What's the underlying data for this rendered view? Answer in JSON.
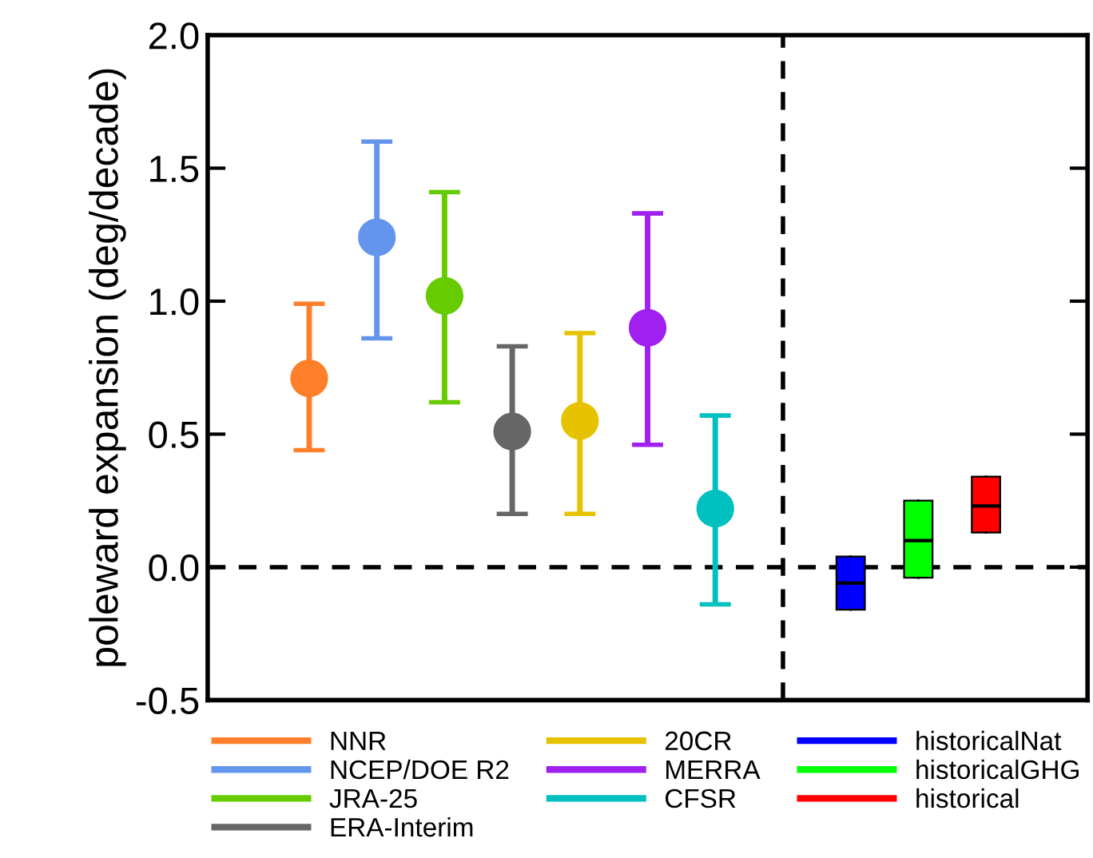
{
  "chart_data": {
    "type": "scatter",
    "ylabel": "poleward expansion (deg/decade)",
    "categories": [
      null,
      null,
      null,
      null,
      null,
      null,
      null,
      null,
      null,
      null,
      null,
      null,
      null
    ],
    "ylim": [
      -0.5,
      2.0
    ],
    "yticks": [
      {
        "value": -0.5,
        "label": "-0.5"
      },
      {
        "value": 0,
        "label": "0.0"
      },
      {
        "value": 0.5,
        "label": "0.5"
      },
      {
        "value": 1,
        "label": "1.0"
      },
      {
        "value": 1.5,
        "label": "1.5"
      },
      {
        "value": 2,
        "label": "2.0"
      }
    ],
    "grid": false,
    "legend": "bottom",
    "marker": "circle",
    "ref_lines": [
      {
        "axis": "y",
        "value": 0,
        "color": "#000000",
        "line_style": "dashed"
      }
    ],
    "series": [
      {
        "name": "NNR",
        "color": "#ff7f2a",
        "values": [
          null,
          0.71,
          null,
          null,
          null,
          null,
          null,
          null,
          null,
          null,
          null,
          null,
          null
        ],
        "errors": [
          null,
          [
            0.44,
            0.99
          ],
          null,
          null,
          null,
          null,
          null,
          null,
          null,
          null,
          null,
          null,
          null
        ]
      },
      {
        "name": "NCEP/DOE R2",
        "color": "#6495ed",
        "values": [
          null,
          null,
          1.24,
          null,
          null,
          null,
          null,
          null,
          null,
          null,
          null,
          null,
          null
        ],
        "errors": [
          null,
          null,
          [
            0.86,
            1.6
          ],
          null,
          null,
          null,
          null,
          null,
          null,
          null,
          null,
          null,
          null
        ]
      },
      {
        "name": "JRA-25",
        "color": "#66cc00",
        "values": [
          null,
          null,
          null,
          1.02,
          null,
          null,
          null,
          null,
          null,
          null,
          null,
          null,
          null
        ],
        "errors": [
          null,
          null,
          null,
          [
            0.62,
            1.41
          ],
          null,
          null,
          null,
          null,
          null,
          null,
          null,
          null,
          null
        ]
      },
      {
        "name": "ERA-Interim",
        "color": "#666666",
        "values": [
          null,
          null,
          null,
          null,
          0.51,
          null,
          null,
          null,
          null,
          null,
          null,
          null,
          null
        ],
        "errors": [
          null,
          null,
          null,
          null,
          [
            0.2,
            0.83
          ],
          null,
          null,
          null,
          null,
          null,
          null,
          null,
          null
        ]
      },
      {
        "name": "20CR",
        "color": "#e6c200",
        "values": [
          null,
          null,
          null,
          null,
          null,
          0.55,
          null,
          null,
          null,
          null,
          null,
          null,
          null
        ],
        "errors": [
          null,
          null,
          null,
          null,
          null,
          [
            0.2,
            0.88
          ],
          null,
          null,
          null,
          null,
          null,
          null,
          null
        ]
      },
      {
        "name": "MERRA",
        "color": "#a020f0",
        "values": [
          null,
          null,
          null,
          null,
          null,
          null,
          0.9,
          null,
          null,
          null,
          null,
          null,
          null
        ],
        "errors": [
          null,
          null,
          null,
          null,
          null,
          null,
          [
            0.46,
            1.33
          ],
          null,
          null,
          null,
          null,
          null,
          null
        ]
      },
      {
        "name": "CFSR",
        "color": "#00c0c0",
        "values": [
          null,
          null,
          null,
          null,
          null,
          null,
          null,
          0.22,
          null,
          null,
          null,
          null,
          null
        ],
        "errors": [
          null,
          null,
          null,
          null,
          null,
          null,
          null,
          [
            -0.14,
            0.57
          ],
          null,
          null,
          null,
          null,
          null
        ]
      },
      {
        "name": "historicalNat",
        "color": "#0000ff",
        "type": "box",
        "boxes": [
          null,
          null,
          null,
          null,
          null,
          null,
          null,
          null,
          null,
          {
            "low": -0.16,
            "q1": -0.16,
            "median": -0.06,
            "q3": 0.04,
            "high": 0.04
          },
          null,
          null,
          null
        ]
      },
      {
        "name": "historicalGHG",
        "color": "#00ff00",
        "type": "box",
        "boxes": [
          null,
          null,
          null,
          null,
          null,
          null,
          null,
          null,
          null,
          null,
          {
            "low": -0.04,
            "q1": -0.04,
            "median": 0.1,
            "q3": 0.25,
            "high": 0.25
          },
          null,
          null
        ]
      },
      {
        "name": "historical",
        "color": "#ff0000",
        "type": "box",
        "boxes": [
          null,
          null,
          null,
          null,
          null,
          null,
          null,
          null,
          null,
          null,
          null,
          {
            "low": 0.13,
            "q1": 0.13,
            "median": 0.23,
            "q3": 0.34,
            "high": 0.34
          },
          null
        ]
      }
    ]
  }
}
